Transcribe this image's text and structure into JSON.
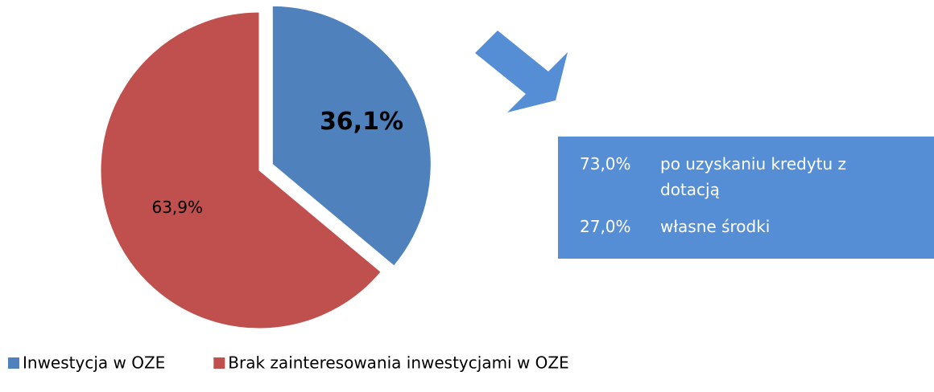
{
  "chart_data": {
    "type": "pie",
    "categories": [
      "Inwestycja w OZE",
      "Brak zainteresowania inwestycjami w OZE"
    ],
    "values": [
      36.1,
      63.9
    ],
    "value_labels": [
      "36,1%",
      "63,9%"
    ],
    "colors": [
      "#4f81bd",
      "#c0504d"
    ],
    "legend": "bottom",
    "breakdown": {
      "values": [
        73.0,
        27.0
      ],
      "value_labels": [
        "73,0%",
        "27,0%"
      ],
      "labels": [
        "po uzyskaniu kredytu z dotacją",
        "własne środki"
      ],
      "color": "#558ed5"
    }
  }
}
